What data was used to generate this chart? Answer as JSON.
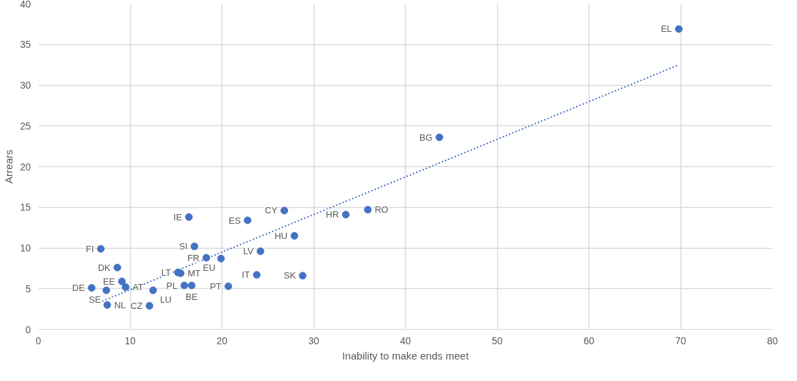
{
  "chart_data": {
    "type": "scatter",
    "xlabel": "Inability to make ends meet",
    "ylabel": "Arrears",
    "xlim": [
      0,
      80
    ],
    "xticks": [
      0,
      10,
      20,
      30,
      40,
      50,
      60,
      70,
      80
    ],
    "ylim": [
      0,
      40
    ],
    "yticks": [
      0,
      5,
      10,
      15,
      20,
      25,
      30,
      35,
      40
    ],
    "grid": true,
    "marker": "circle",
    "series": [
      {
        "type": "scatter",
        "color": "#4472c4",
        "x": [
          69.8,
          43.7,
          35.9,
          33.5,
          26.8,
          22.8,
          27.9,
          16.4,
          24.2,
          17.0,
          18.3,
          19.9,
          23.8,
          28.8,
          20.7,
          15.9,
          16.7,
          15.2,
          15.5,
          8.6,
          9.1,
          9.5,
          5.8,
          7.4,
          7.5,
          12.5,
          12.1,
          6.8
        ],
        "values": [
          36.9,
          23.6,
          14.7,
          14.1,
          14.6,
          13.4,
          11.5,
          13.8,
          9.6,
          10.2,
          8.8,
          8.7,
          6.7,
          6.6,
          5.3,
          5.4,
          5.4,
          7.0,
          6.9,
          7.6,
          5.9,
          5.2,
          5.1,
          4.8,
          3.0,
          4.8,
          2.9,
          9.9
        ]
      },
      {
        "type": "line",
        "color": "#4472c4",
        "line_style": "dotted",
        "marker": "none",
        "x": [
          6.6,
          69.8
        ],
        "values": [
          3.3,
          32.5
        ]
      }
    ],
    "annotations": [
      {
        "text": "EL",
        "x": 69.8,
        "y": 36.9
      },
      {
        "text": "BG",
        "x": 43.7,
        "y": 23.6
      },
      {
        "text": "RO",
        "x": 35.9,
        "y": 14.7
      },
      {
        "text": "HR",
        "x": 33.5,
        "y": 14.1
      },
      {
        "text": "CY",
        "x": 26.8,
        "y": 14.6
      },
      {
        "text": "ES",
        "x": 22.8,
        "y": 13.4
      },
      {
        "text": "HU",
        "x": 27.9,
        "y": 11.5
      },
      {
        "text": "IE",
        "x": 16.4,
        "y": 13.8
      },
      {
        "text": "LV",
        "x": 24.2,
        "y": 9.6
      },
      {
        "text": "SI",
        "x": 17.0,
        "y": 10.2
      },
      {
        "text": "FR",
        "x": 18.3,
        "y": 8.8
      },
      {
        "text": "EU",
        "x": 19.9,
        "y": 8.7
      },
      {
        "text": "IT",
        "x": 23.8,
        "y": 6.7
      },
      {
        "text": "SK",
        "x": 28.8,
        "y": 6.6
      },
      {
        "text": "PT",
        "x": 20.7,
        "y": 5.3
      },
      {
        "text": "PL",
        "x": 15.9,
        "y": 5.4
      },
      {
        "text": "BE",
        "x": 16.7,
        "y": 5.4
      },
      {
        "text": "LT",
        "x": 15.2,
        "y": 7.0
      },
      {
        "text": "MT",
        "x": 15.5,
        "y": 6.9
      },
      {
        "text": "DK",
        "x": 8.6,
        "y": 7.6
      },
      {
        "text": "EE",
        "x": 9.1,
        "y": 5.9
      },
      {
        "text": "AT",
        "x": 9.5,
        "y": 5.2
      },
      {
        "text": "DE",
        "x": 5.8,
        "y": 5.1
      },
      {
        "text": "SE",
        "x": 7.4,
        "y": 4.8
      },
      {
        "text": "NL",
        "x": 7.5,
        "y": 3.0
      },
      {
        "text": "LU",
        "x": 12.5,
        "y": 4.8
      },
      {
        "text": "CZ",
        "x": 12.1,
        "y": 2.9
      },
      {
        "text": "FI",
        "x": 6.8,
        "y": 9.9
      }
    ]
  }
}
